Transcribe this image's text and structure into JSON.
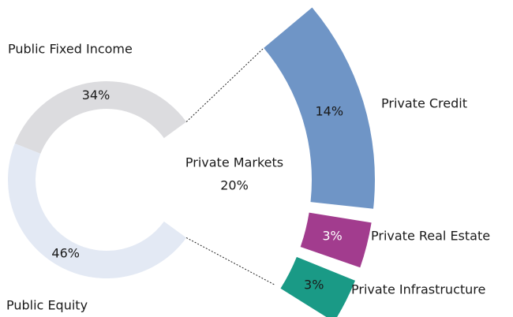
{
  "chart_data": {
    "type": "pie",
    "categories": [
      "Public Fixed Income",
      "Public Equity",
      "Private Markets"
    ],
    "values": [
      34,
      46,
      20
    ],
    "value_labels": [
      "34%",
      "46%",
      "20%"
    ],
    "colors": [
      "#dcdcdf",
      "#e3e9f4",
      "#6f95c6"
    ],
    "breakdown": {
      "categories": [
        "Private Credit",
        "Private Real Estate",
        "Private Infrastructure"
      ],
      "values": [
        14,
        3,
        3
      ],
      "value_labels": [
        "14%",
        "3%",
        "3%"
      ],
      "colors": [
        "#6f95c6",
        "#a23c8e",
        "#1a9a86"
      ],
      "label_colors": [
        "#1a1a1a",
        "#ffffff",
        "#1a1a1a"
      ]
    }
  }
}
